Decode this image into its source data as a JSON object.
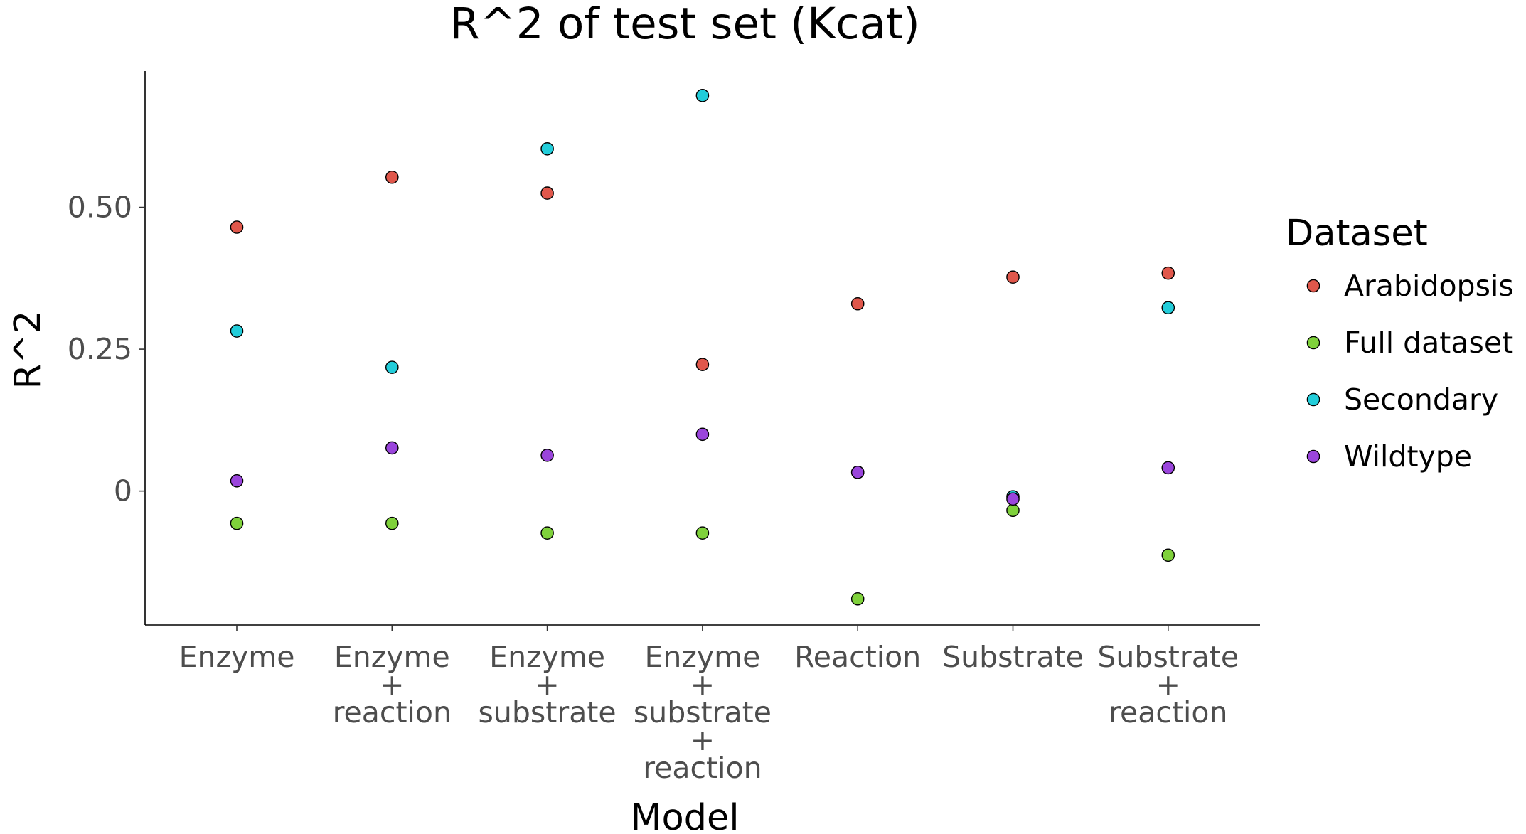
{
  "chart_data": {
    "type": "scatter",
    "title": "R^2 of test set (Kcat)",
    "xlabel": "Model",
    "ylabel": "R^2",
    "categories": [
      [
        "Enzyme"
      ],
      [
        "Enzyme",
        "+",
        "reaction"
      ],
      [
        "Enzyme",
        "+",
        "substrate"
      ],
      [
        "Enzyme",
        "+",
        "substrate",
        "+",
        "reaction"
      ],
      [
        "Reaction"
      ],
      [
        "Substrate"
      ],
      [
        "Substrate",
        "+",
        "reaction"
      ]
    ],
    "yticks": [
      {
        "value": 0,
        "label": "0"
      },
      {
        "value": 0.25,
        "label": "0.25"
      },
      {
        "value": 0.5,
        "label": "0.50"
      }
    ],
    "ylim": [
      -0.236,
      0.74
    ],
    "grid": false,
    "legend": {
      "title": "Dataset",
      "placement": "right"
    },
    "series": [
      {
        "name": "Arabidopsis",
        "color": "#e0574b",
        "values": [
          0.465,
          0.553,
          0.525,
          0.223,
          0.33,
          0.377,
          0.384
        ]
      },
      {
        "name": "Full dataset",
        "color": "#7fd13b",
        "values": [
          -0.057,
          -0.057,
          -0.074,
          -0.074,
          -0.19,
          -0.034,
          -0.113
        ]
      },
      {
        "name": "Secondary",
        "color": "#22cdda",
        "values": [
          0.282,
          0.218,
          0.603,
          0.697,
          0.033,
          -0.01,
          0.323
        ]
      },
      {
        "name": "Wildtype",
        "color": "#9a45dc",
        "values": [
          0.018,
          0.076,
          0.063,
          0.1,
          0.033,
          -0.014,
          0.041
        ]
      }
    ]
  }
}
